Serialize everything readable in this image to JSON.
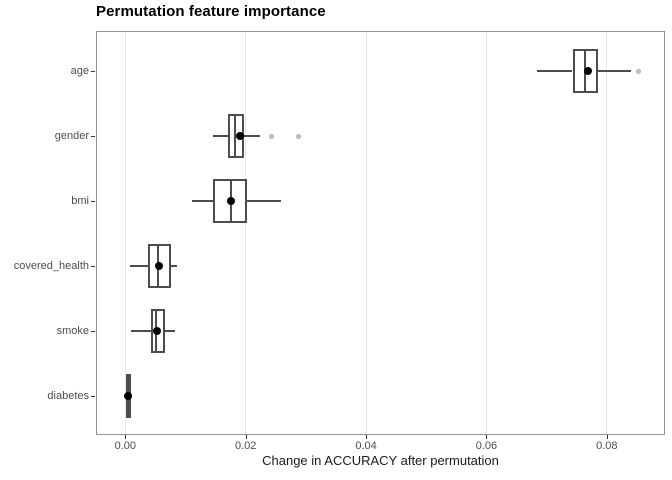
{
  "title": "Permutation feature importance",
  "x_axis_title": "Change in ACCURACY after permutation",
  "colors": {
    "background": "#ffffff",
    "panel_border": "#919191",
    "gridline": "#e7e7e7",
    "box_stroke": "#4d4d4d",
    "mean_dot": "#000000",
    "outlier_fill": "#c3c3c3",
    "tick_label": "#4d4d4d",
    "axis_title": "#1a1a1a",
    "title": "#000000"
  },
  "chart_data": {
    "type": "boxplot",
    "orientation": "horizontal",
    "title": "Permutation feature importance",
    "xlabel": "Change in ACCURACY after permutation",
    "ylabel": "",
    "xlim": [
      -0.0047,
      0.0895
    ],
    "x_ticks": [
      0.0,
      0.02,
      0.04,
      0.06,
      0.08
    ],
    "x_tick_labels": [
      "0.00",
      "0.02",
      "0.04",
      "0.06",
      "0.08"
    ],
    "grid": "major-x-only",
    "legend": "none",
    "categories": [
      "age",
      "gender",
      "bmi",
      "covered_health",
      "smoke",
      "diabetes"
    ],
    "series": [
      {
        "name": "age",
        "whisker_low": 0.0684,
        "q1": 0.0743,
        "median": 0.0763,
        "mean": 0.0768,
        "q3": 0.0786,
        "whisker_high": 0.084,
        "outliers": [
          0.0852
        ]
      },
      {
        "name": "gender",
        "whisker_low": 0.0145,
        "q1": 0.0171,
        "median": 0.0183,
        "mean": 0.019,
        "q3": 0.0197,
        "whisker_high": 0.0223,
        "outliers": [
          0.0243,
          0.0287
        ]
      },
      {
        "name": "bmi",
        "whisker_low": 0.0111,
        "q1": 0.0145,
        "median": 0.0175,
        "mean": 0.0175,
        "q3": 0.0203,
        "whisker_high": 0.0259,
        "outliers": []
      },
      {
        "name": "covered_health",
        "whisker_low": 0.0007,
        "q1": 0.0038,
        "median": 0.0054,
        "mean": 0.0056,
        "q3": 0.0076,
        "whisker_high": 0.0086,
        "outliers": []
      },
      {
        "name": "smoke",
        "whisker_low": 0.0009,
        "q1": 0.0042,
        "median": 0.0051,
        "mean": 0.0052,
        "q3": 0.0066,
        "whisker_high": 0.0082,
        "outliers": []
      },
      {
        "name": "diabetes",
        "whisker_low": 0.0,
        "q1": 0.0001,
        "median": 0.0004,
        "mean": 0.0005,
        "q3": 0.0009,
        "whisker_high": 0.001,
        "outliers": []
      }
    ]
  }
}
